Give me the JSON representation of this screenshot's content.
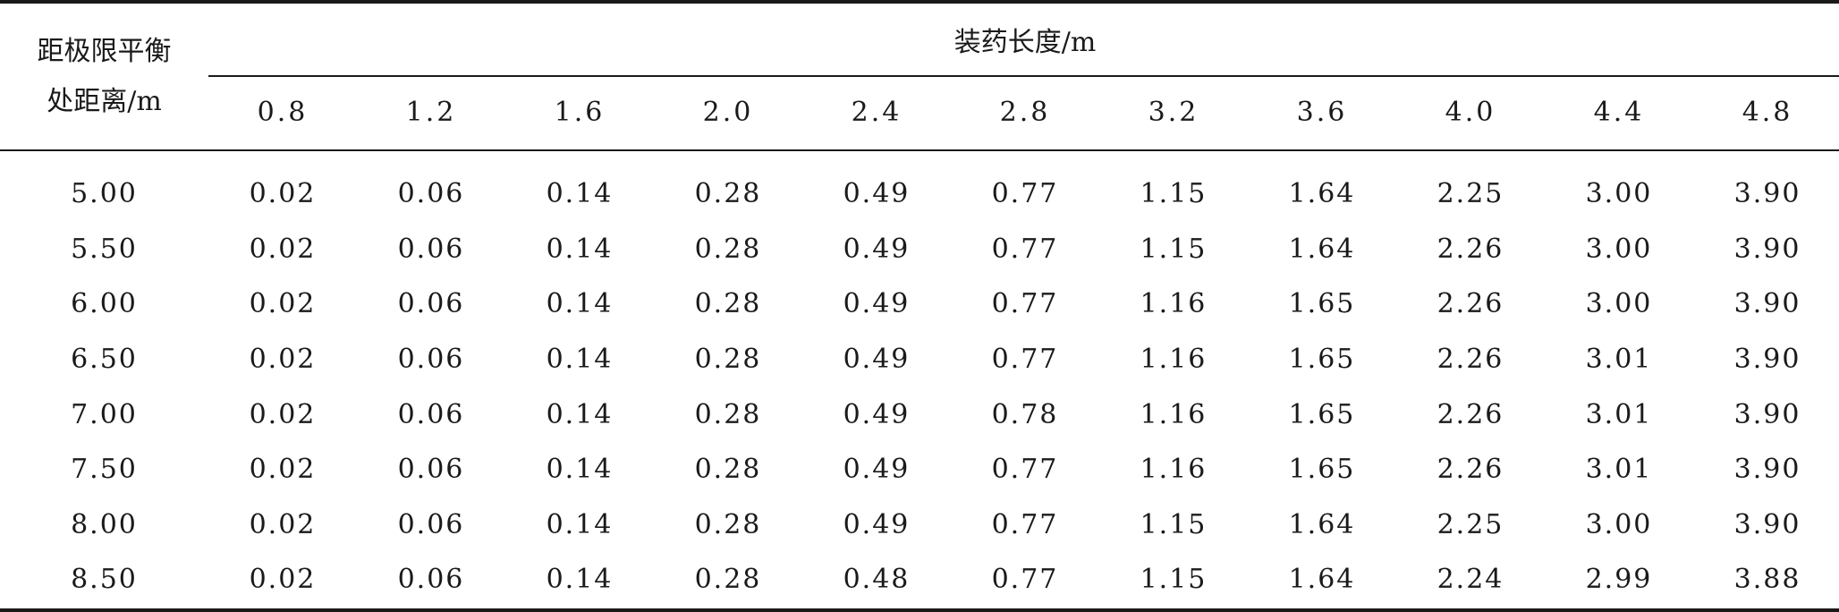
{
  "table": {
    "stub_header_line1": "距极限平衡",
    "stub_header_line2": "处距离/m",
    "group_header": "装药长度/m",
    "columns": [
      "0.8",
      "1.2",
      "1.6",
      "2.0",
      "2.4",
      "2.8",
      "3.2",
      "3.6",
      "4.0",
      "4.4",
      "4.8"
    ],
    "rows": [
      {
        "distance": "5.00",
        "values": [
          "0.02",
          "0.06",
          "0.14",
          "0.28",
          "0.49",
          "0.77",
          "1.15",
          "1.64",
          "2.25",
          "3.00",
          "3.90"
        ]
      },
      {
        "distance": "5.50",
        "values": [
          "0.02",
          "0.06",
          "0.14",
          "0.28",
          "0.49",
          "0.77",
          "1.15",
          "1.64",
          "2.26",
          "3.00",
          "3.90"
        ]
      },
      {
        "distance": "6.00",
        "values": [
          "0.02",
          "0.06",
          "0.14",
          "0.28",
          "0.49",
          "0.77",
          "1.16",
          "1.65",
          "2.26",
          "3.00",
          "3.90"
        ]
      },
      {
        "distance": "6.50",
        "values": [
          "0.02",
          "0.06",
          "0.14",
          "0.28",
          "0.49",
          "0.77",
          "1.16",
          "1.65",
          "2.26",
          "3.01",
          "3.90"
        ]
      },
      {
        "distance": "7.00",
        "values": [
          "0.02",
          "0.06",
          "0.14",
          "0.28",
          "0.49",
          "0.78",
          "1.16",
          "1.65",
          "2.26",
          "3.01",
          "3.90"
        ]
      },
      {
        "distance": "7.50",
        "values": [
          "0.02",
          "0.06",
          "0.14",
          "0.28",
          "0.49",
          "0.77",
          "1.16",
          "1.65",
          "2.26",
          "3.01",
          "3.90"
        ]
      },
      {
        "distance": "8.00",
        "values": [
          "0.02",
          "0.06",
          "0.14",
          "0.28",
          "0.49",
          "0.77",
          "1.15",
          "1.64",
          "2.25",
          "3.00",
          "3.90"
        ]
      },
      {
        "distance": "8.50",
        "values": [
          "0.02",
          "0.06",
          "0.14",
          "0.28",
          "0.48",
          "0.77",
          "1.15",
          "1.64",
          "2.24",
          "2.99",
          "3.88"
        ]
      }
    ]
  }
}
